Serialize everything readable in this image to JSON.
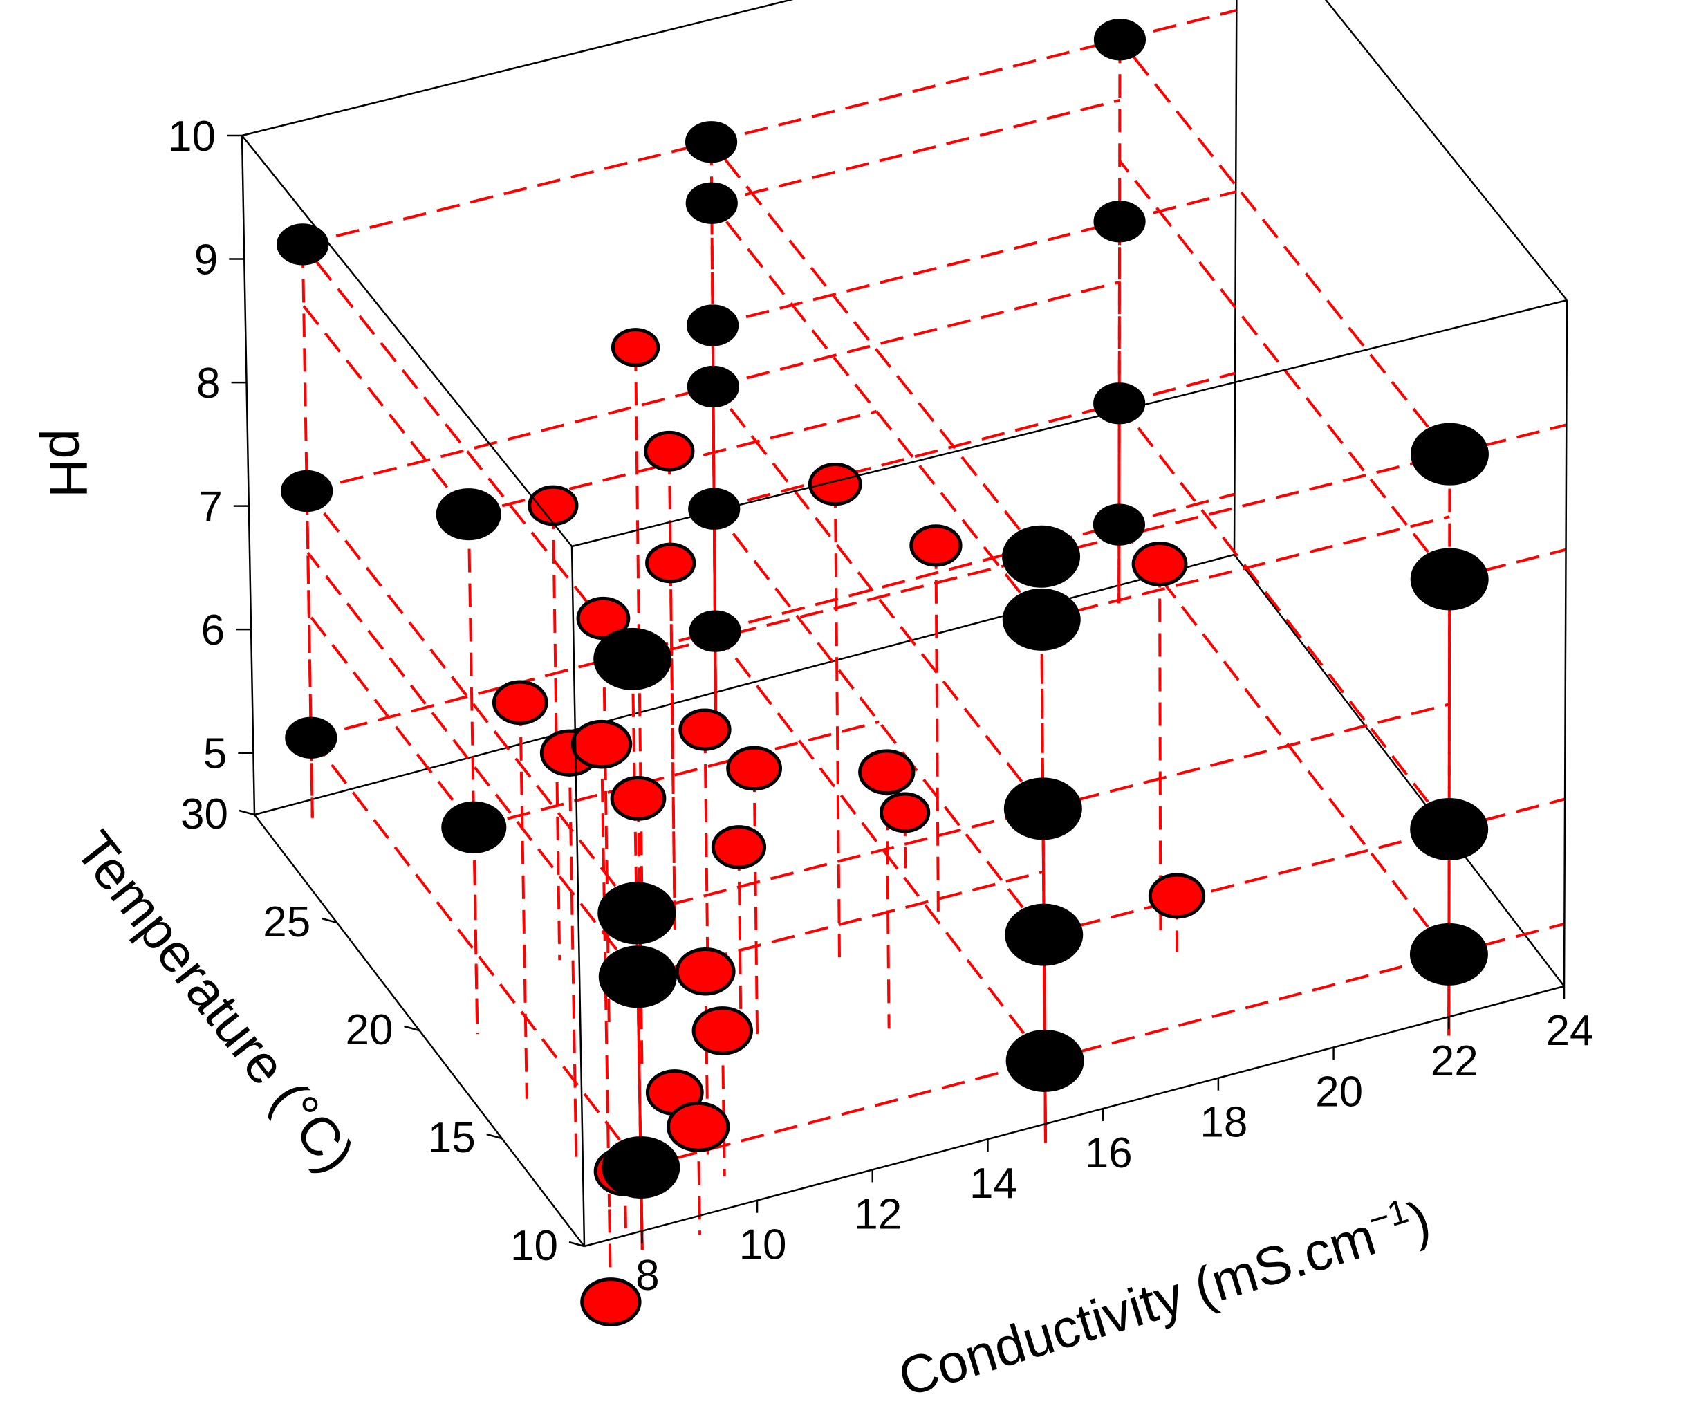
{
  "chart_data": {
    "type": "scatter3d",
    "title": "",
    "axes": {
      "x": {
        "label": "Conductivity (mS.cm",
        "label_sup": "−1",
        "label_close": ")",
        "range": [
          7,
          24
        ],
        "ticks": [
          "8",
          "10",
          "12",
          "14",
          "16",
          "18",
          "20",
          "22",
          "24"
        ]
      },
      "y": {
        "label": "Temperature (°C)",
        "range": [
          10,
          30
        ],
        "ticks": [
          "10",
          "15",
          "20",
          "25",
          "30"
        ]
      },
      "z": {
        "label": "pH",
        "range": [
          4.5,
          10
        ],
        "ticks": [
          "5",
          "6",
          "7",
          "8",
          "9",
          "10"
        ]
      }
    },
    "colors": {
      "factorial_points": "#000000",
      "other_points": "#ff0000",
      "drop_lines": "#ff0000",
      "box": "#000000"
    },
    "grid": false,
    "legend": "none",
    "design_points": [
      {
        "x": 8,
        "y": 10,
        "z": 5,
        "color": "black"
      },
      {
        "x": 15,
        "y": 10,
        "z": 5,
        "color": "black"
      },
      {
        "x": 8,
        "y": 30,
        "z": 5,
        "color": "black"
      },
      {
        "x": 15,
        "y": 30,
        "z": 5,
        "color": "black"
      },
      {
        "x": 15,
        "y": 10,
        "z": 9,
        "color": "black"
      },
      {
        "x": 22,
        "y": 10,
        "z": 9,
        "color": "black"
      },
      {
        "x": 15,
        "y": 30,
        "z": 9,
        "color": "black"
      },
      {
        "x": 22,
        "y": 30,
        "z": 9,
        "color": "black"
      },
      {
        "x": 8,
        "y": 10,
        "z": 7,
        "color": "black"
      },
      {
        "x": 15,
        "y": 10,
        "z": 7,
        "color": "black"
      },
      {
        "x": 8,
        "y": 30,
        "z": 7,
        "color": "black"
      },
      {
        "x": 15,
        "y": 30,
        "z": 7,
        "color": "black"
      },
      {
        "x": 15,
        "y": 10,
        "z": 6,
        "color": "black"
      },
      {
        "x": 22,
        "y": 10,
        "z": 6,
        "color": "black"
      },
      {
        "x": 15,
        "y": 30,
        "z": 6,
        "color": "black"
      },
      {
        "x": 22,
        "y": 30,
        "z": 6,
        "color": "black"
      },
      {
        "x": 8,
        "y": 10,
        "z": 9,
        "color": "black"
      },
      {
        "x": 15,
        "y": 10,
        "z": 8.5,
        "color": "black"
      },
      {
        "x": 15,
        "y": 30,
        "z": 8.5,
        "color": "black"
      },
      {
        "x": 22,
        "y": 10,
        "z": 5,
        "color": "black"
      },
      {
        "x": 22,
        "y": 30,
        "z": 5,
        "color": "black"
      },
      {
        "x": 8,
        "y": 30,
        "z": 9,
        "color": "black"
      },
      {
        "x": 22,
        "y": 30,
        "z": 7.5,
        "color": "black"
      },
      {
        "x": 22,
        "y": 10,
        "z": 8,
        "color": "black"
      },
      {
        "x": 8,
        "y": 10,
        "z": 6.5,
        "color": "black"
      },
      {
        "x": 15,
        "y": 30,
        "z": 7.5,
        "color": "black"
      },
      {
        "x": 8,
        "y": 20,
        "z": 8.5,
        "color": "black"
      },
      {
        "x": 8,
        "y": 20,
        "z": 6,
        "color": "black"
      },
      {
        "x": 8,
        "y": 12,
        "z": 8,
        "color": "red"
      },
      {
        "x": 8,
        "y": 14,
        "z": 7.6,
        "color": "red"
      },
      {
        "x": 8,
        "y": 17,
        "z": 7.5,
        "color": "red"
      },
      {
        "x": 10,
        "y": 22,
        "z": 8,
        "color": "red"
      },
      {
        "x": 10,
        "y": 19,
        "z": 7.6,
        "color": "red"
      },
      {
        "x": 10,
        "y": 17,
        "z": 6.5,
        "color": "red"
      },
      {
        "x": 10,
        "y": 13,
        "z": 5.8,
        "color": "red"
      },
      {
        "x": 10,
        "y": 12,
        "z": 5.5,
        "color": "red"
      },
      {
        "x": 9,
        "y": 10,
        "z": 5.2,
        "color": "red"
      },
      {
        "x": 8,
        "y": 11,
        "z": 4.8,
        "color": "red"
      },
      {
        "x": 8,
        "y": 12,
        "z": 3.6,
        "color": "red"
      },
      {
        "x": 12,
        "y": 22,
        "z": 8.2,
        "color": "red"
      },
      {
        "x": 12,
        "y": 24,
        "z": 8.7,
        "color": "red"
      },
      {
        "x": 12,
        "y": 22,
        "z": 7.3,
        "color": "red"
      },
      {
        "x": 12,
        "y": 17,
        "z": 6.5,
        "color": "red"
      },
      {
        "x": 12,
        "y": 20,
        "z": 6.3,
        "color": "red"
      },
      {
        "x": 12,
        "y": 18,
        "z": 5.7,
        "color": "red"
      },
      {
        "x": 10,
        "y": 15,
        "z": 4.5,
        "color": "red"
      },
      {
        "x": 14,
        "y": 19,
        "z": 8.2,
        "color": "red"
      },
      {
        "x": 14,
        "y": 16,
        "z": 6.4,
        "color": "red"
      },
      {
        "x": 16,
        "y": 20,
        "z": 7.3,
        "color": "red"
      },
      {
        "x": 16,
        "y": 22,
        "z": 4.8,
        "color": "red"
      },
      {
        "x": 19,
        "y": 17,
        "z": 7.3,
        "color": "red"
      },
      {
        "x": 19,
        "y": 16,
        "z": 4.8,
        "color": "red"
      }
    ]
  }
}
